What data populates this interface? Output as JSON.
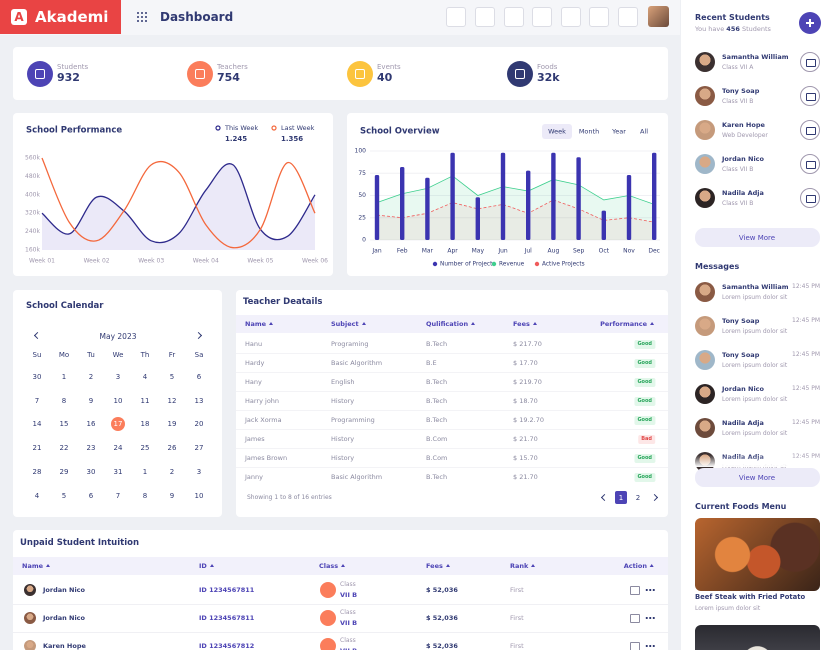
{
  "header": {
    "logo_letter": "A",
    "brand": "Akademi",
    "title": "Dashboard"
  },
  "stats": [
    {
      "label": "Students",
      "value": 932,
      "color": "#4d44b5"
    },
    {
      "label": "Teachers",
      "value": 754,
      "color": "#fb7d5b"
    },
    {
      "label": "Events",
      "value": 40,
      "color": "#fcc43e"
    },
    {
      "label": "Foods",
      "value": "32k",
      "color": "#303972"
    }
  ],
  "chart_data": [
    {
      "type": "line",
      "title": "School Performance",
      "x": [
        1,
        1.5,
        2,
        2.5,
        3,
        3.5,
        4,
        4.5,
        5,
        5.5,
        6
      ],
      "xlim": [
        1,
        6
      ],
      "xticks": [
        {
          "value": 1,
          "label": "Week 01"
        },
        {
          "value": 2,
          "label": "Week 02"
        },
        {
          "value": 3,
          "label": "Week 03"
        },
        {
          "value": 4,
          "label": "Week 04"
        },
        {
          "value": 5,
          "label": "Week 05"
        },
        {
          "value": 6,
          "label": "Week 06"
        }
      ],
      "ylim": [
        160,
        560
      ],
      "yticks": [
        {
          "value": 160,
          "label": "160k"
        },
        {
          "value": 240,
          "label": "240k"
        },
        {
          "value": 320,
          "label": "320k"
        },
        {
          "value": 400,
          "label": "400k"
        },
        {
          "value": 480,
          "label": "480k"
        },
        {
          "value": 560,
          "label": "560k"
        }
      ],
      "series": [
        {
          "name": "This Week",
          "total": "1.245",
          "color": "#2e2a8c",
          "fill": "#ebe9f8",
          "values": [
            320,
            230,
            390,
            330,
            200,
            230,
            420,
            530,
            250,
            220,
            400
          ]
        },
        {
          "name": "Last Week",
          "total": "1.356",
          "color": "#f4683c",
          "values": [
            560,
            280,
            200,
            330,
            530,
            500,
            270,
            170,
            250,
            540,
            320
          ]
        }
      ]
    },
    {
      "type": "bar",
      "title": "School Overview",
      "tabs": [
        "Week",
        "Month",
        "Year",
        "All"
      ],
      "active_tab": "Week",
      "categories": [
        "Jan",
        "Feb",
        "Mar",
        "Apr",
        "May",
        "Jun",
        "Jul",
        "Aug",
        "Sep",
        "Oct",
        "Nov",
        "Dec"
      ],
      "ylim": [
        0,
        100
      ],
      "yticks": [
        0,
        25,
        50,
        75,
        100
      ],
      "grid": true,
      "series": [
        {
          "name": "Number of Projects",
          "kind": "bar",
          "color": "#3b34b0",
          "values": [
            73,
            82,
            70,
            98,
            48,
            98,
            78,
            98,
            93,
            33,
            73,
            98
          ]
        },
        {
          "name": "Revenue",
          "kind": "area",
          "color": "#3ecf8e",
          "values": [
            42,
            52,
            58,
            72,
            50,
            60,
            55,
            68,
            62,
            45,
            50,
            40
          ]
        },
        {
          "name": "Active Projects",
          "kind": "dashed",
          "color": "#f05b5b",
          "values": [
            28,
            25,
            30,
            42,
            35,
            40,
            30,
            45,
            35,
            22,
            25,
            20
          ]
        }
      ]
    }
  ],
  "calendar": {
    "title": "School Calendar",
    "month": "May 2023",
    "weekdays": [
      "Su",
      "Mo",
      "Tu",
      "We",
      "Th",
      "Fr",
      "Sa"
    ],
    "weeks": [
      [
        30,
        1,
        2,
        3,
        4,
        5,
        6
      ],
      [
        7,
        8,
        9,
        10,
        11,
        12,
        13
      ],
      [
        14,
        15,
        16,
        17,
        18,
        19,
        20
      ],
      [
        21,
        22,
        23,
        24,
        25,
        26,
        27
      ],
      [
        28,
        29,
        30,
        31,
        1,
        2,
        3
      ],
      [
        4,
        5,
        6,
        7,
        8,
        9,
        10
      ]
    ],
    "selected_day": 17
  },
  "teachers": {
    "title": "Teacher Deatails",
    "columns": [
      "Name",
      "Subject",
      "Qulification",
      "Fees",
      "Performance"
    ],
    "rows": [
      [
        "Hanu",
        "Programing",
        "B.Tech",
        "$ 217.70",
        "Good"
      ],
      [
        "Hardy",
        "Basic Algorithm",
        "B.E",
        "$ 17.70",
        "Good"
      ],
      [
        "Hany",
        "English",
        "B.Tech",
        "$ 219.70",
        "Good"
      ],
      [
        "Harry john",
        "History",
        "B.Tech",
        "$ 18.70",
        "Good"
      ],
      [
        "Jack Xorma",
        "Programming",
        "B.Tech",
        "$ 19.2.70",
        "Good"
      ],
      [
        "James",
        "History",
        "B.Com",
        "$ 21.70",
        "Bad"
      ],
      [
        "James Brown",
        "History",
        "B.Com",
        "$ 15.70",
        "Good"
      ],
      [
        "Janny",
        "Basic Algorithm",
        "B.Tech",
        "$ 21.70",
        "Good"
      ]
    ],
    "footer": "Showing 1 to 8 of 16 entries",
    "pages": [
      1,
      2
    ],
    "current_page": 1
  },
  "unpaid": {
    "title": "Unpaid Student Intuition",
    "columns": [
      "Name",
      "ID",
      "Class",
      "Fees",
      "Rank",
      "Action"
    ],
    "rows": [
      [
        "Jordan Nico",
        "ID 1234567811",
        "Class",
        "VII B",
        "$ 52,036",
        "First"
      ],
      [
        "Jordan Nico",
        "ID 1234567811",
        "Class",
        "VII B",
        "$ 52,036",
        "First"
      ],
      [
        "Karen Hope",
        "ID 1234567812",
        "Class",
        "VII B",
        "$ 52,036",
        "First"
      ]
    ]
  },
  "sidebar": {
    "recent": {
      "title": "Recent Students",
      "subtitle": [
        "You have ",
        "456",
        " Students"
      ],
      "students": [
        {
          "name": "Samantha William",
          "info": "Class VII A"
        },
        {
          "name": "Tony Soap",
          "info": "Class VII B"
        },
        {
          "name": "Karen Hope",
          "info": "Web Developer"
        },
        {
          "name": "Jordan Nico",
          "info": "Class VII B"
        },
        {
          "name": "Nadila Adja",
          "info": "Class VII B"
        }
      ],
      "more": "View More"
    },
    "messages": {
      "title": "Messages",
      "items": [
        {
          "name": "Samantha William",
          "text": "Lorem ipsum dolor sit",
          "time": "12:45 PM"
        },
        {
          "name": "Tony Soap",
          "text": "Lorem ipsum dolor sit",
          "time": "12:45 PM"
        },
        {
          "name": "Tony Soap",
          "text": "Lorem ipsum dolor sit",
          "time": "12:45 PM"
        },
        {
          "name": "Jordan Nico",
          "text": "Lorem ipsum dolor sit",
          "time": "12:45 PM"
        },
        {
          "name": "Nadila Adja",
          "text": "Lorem ipsum dolor sit",
          "time": "12:45 PM"
        },
        {
          "name": "Nadila Adja",
          "text": "Lorem ipsum dolor sit",
          "time": "12:45 PM"
        }
      ],
      "more": "View More"
    },
    "foods": {
      "title": "Current Foods Menu",
      "items": [
        {
          "name": "Beef Steak with Fried Potato",
          "text": "Lorem ipsum dolor sit"
        }
      ]
    }
  }
}
